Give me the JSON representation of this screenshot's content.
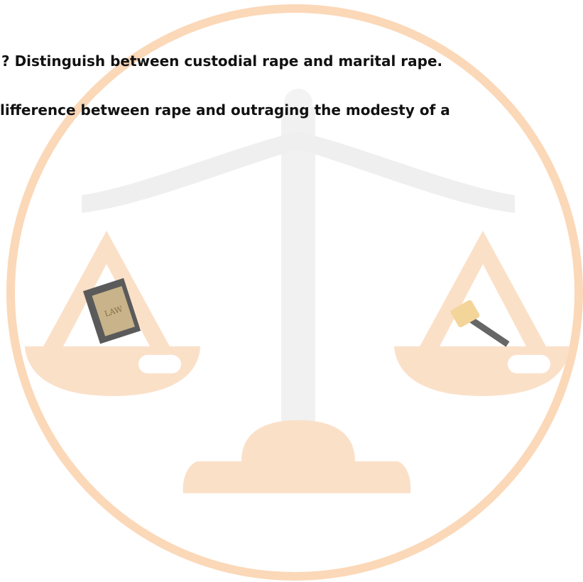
{
  "document": {
    "lines": [
      "? Distinguish between custodial rape and marital rape.",
      "lifference between rape and outraging the modesty of a"
    ],
    "illustration": {
      "book_label": "LAW"
    }
  }
}
